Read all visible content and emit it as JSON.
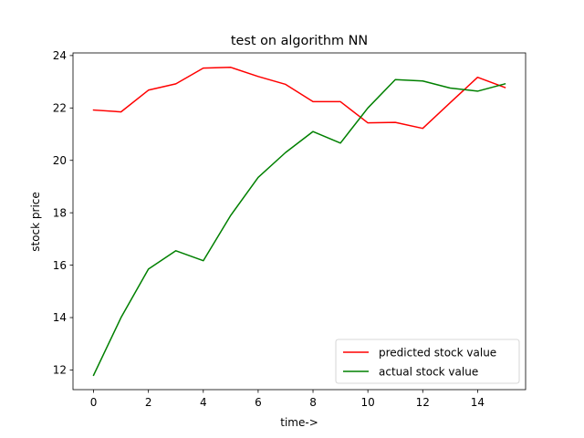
{
  "chart_data": {
    "type": "line",
    "title": "test on algorithm NN",
    "xlabel": "time->",
    "ylabel": "stock price",
    "x": [
      0,
      1,
      2,
      3,
      4,
      5,
      6,
      7,
      8,
      9,
      10,
      11,
      12,
      13,
      14,
      15
    ],
    "xlim": [
      -0.75,
      15.75
    ],
    "ylim": [
      11.25,
      24.1
    ],
    "xticks": [
      0,
      2,
      4,
      6,
      8,
      10,
      12,
      14
    ],
    "yticks": [
      12,
      14,
      16,
      18,
      20,
      22,
      24
    ],
    "grid": false,
    "legend_position": "lower-right",
    "series": [
      {
        "name": "predicted stock value",
        "color": "#ff0000",
        "values": [
          21.92,
          21.85,
          22.68,
          22.92,
          23.52,
          23.55,
          23.2,
          22.9,
          22.24,
          22.24,
          21.43,
          21.45,
          21.22,
          22.2,
          23.17,
          22.78
        ]
      },
      {
        "name": "actual stock value",
        "color": "#008000",
        "values": [
          11.8,
          14.0,
          15.85,
          16.55,
          16.17,
          17.9,
          19.35,
          20.3,
          21.1,
          20.66,
          22.0,
          23.08,
          23.03,
          22.76,
          22.64,
          22.92
        ]
      }
    ]
  }
}
